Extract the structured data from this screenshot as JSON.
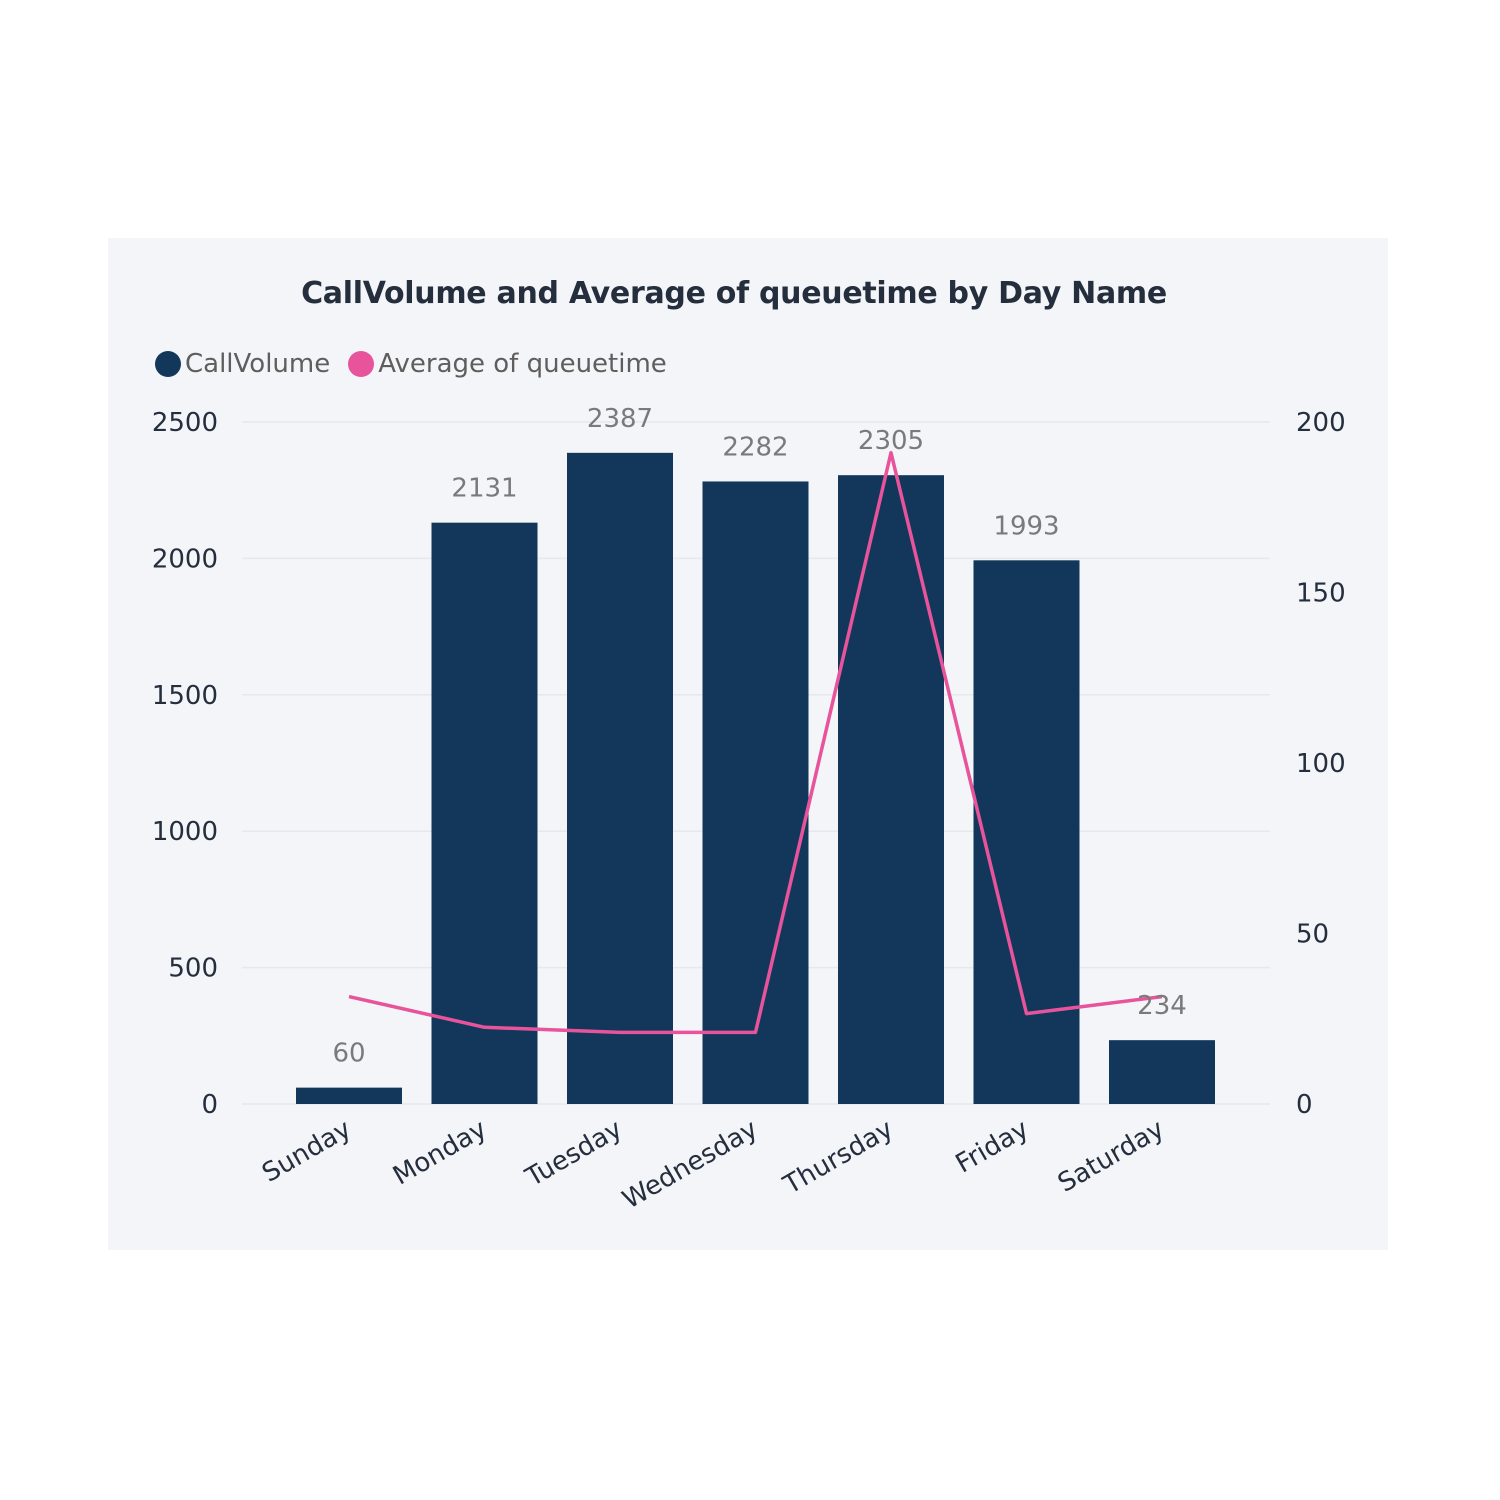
{
  "chart_data": {
    "type": "bar",
    "title": "CallVolume and Average of queuetime by Day Name",
    "categories": [
      "Sunday",
      "Monday",
      "Tuesday",
      "Wednesday",
      "Thursday",
      "Friday",
      "Saturday"
    ],
    "series": [
      {
        "name": "CallVolume",
        "kind": "bar",
        "axis": "left",
        "color": "#12375a",
        "values": [
          60,
          2131,
          2387,
          2282,
          2305,
          1993,
          234
        ],
        "labels": [
          "60",
          "2131",
          "2387",
          "2282",
          "2305",
          "1993",
          "234"
        ]
      },
      {
        "name": "Average of queuetime",
        "kind": "line",
        "axis": "right",
        "color": "#e8549b",
        "values": [
          31.5,
          22.5,
          21,
          21,
          191,
          26.5,
          31.5
        ]
      }
    ],
    "y_left": {
      "min": 0,
      "max": 2500,
      "ticks": [
        "0",
        "500",
        "1000",
        "1500",
        "2000",
        "2500"
      ]
    },
    "y_right": {
      "min": 0,
      "max": 200,
      "ticks": [
        "0",
        "50",
        "100",
        "150",
        "200"
      ]
    },
    "grid": true,
    "legend_position": "top-left"
  }
}
